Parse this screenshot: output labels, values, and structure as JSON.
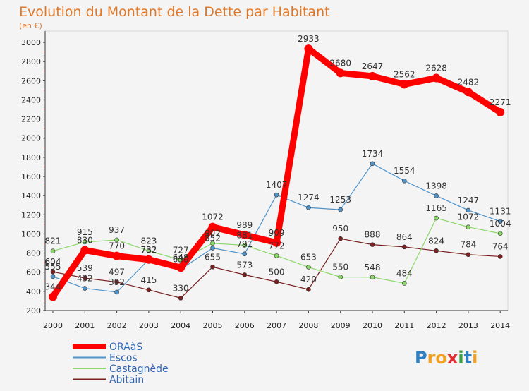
{
  "chart_data": {
    "type": "line",
    "title": "Evolution du Montant de la Dette par Habitant",
    "subtitle": "(en €)",
    "x": [
      "2000",
      "2001",
      "2002",
      "2003",
      "2004",
      "2005",
      "2006",
      "2007",
      "2008",
      "2009",
      "2010",
      "2011",
      "2012",
      "2013",
      "2014"
    ],
    "y_ticks": [
      200,
      400,
      600,
      800,
      1000,
      1200,
      1400,
      1600,
      1800,
      2000,
      2200,
      2400,
      2600,
      2800,
      3000
    ],
    "ylim": [
      200,
      3000
    ],
    "grid": "none",
    "legend_position": "bottom-left",
    "series": [
      {
        "name": "ORAàS",
        "color": "#ff0000",
        "values": [
          344,
          830,
          770,
          732,
          648,
          1072,
          989,
          909,
          2933,
          2680,
          2647,
          2562,
          2628,
          2482,
          2271
        ],
        "labels": [
          "344",
          "830",
          "770",
          "732",
          "648",
          "1072",
          "989",
          "909",
          "2933",
          "2680",
          "2647",
          "2562",
          "2628",
          "2482",
          "2271"
        ]
      },
      {
        "name": "Escos",
        "color": "#4f93c9",
        "values": [
          555,
          432,
          392,
          732,
          630,
          852,
          791,
          1407,
          1274,
          1253,
          1734,
          1554,
          1398,
          1247,
          1131
        ],
        "labels": [
          "555",
          "432",
          "392",
          "732",
          "630",
          "852",
          "791",
          "1407",
          "1274",
          "1253",
          "1734",
          "1554",
          "1398",
          "1247",
          "1131"
        ]
      },
      {
        "name": "Castagnède",
        "color": "#8cd86a",
        "values": [
          821,
          915,
          937,
          823,
          727,
          902,
          881,
          772,
          653,
          550,
          548,
          484,
          1165,
          1072,
          1004
        ],
        "labels": [
          "821",
          "915",
          "937",
          "823",
          "727",
          "902",
          "881",
          "772",
          "653",
          "550",
          "548",
          "484",
          "1165",
          "1072",
          "1004"
        ]
      },
      {
        "name": "Abitain",
        "color": "#7a2020",
        "values": [
          604,
          539,
          497,
          415,
          330,
          655,
          573,
          500,
          420,
          950,
          888,
          864,
          824,
          784,
          764
        ],
        "labels": [
          "604",
          "539",
          "497",
          "415",
          "330",
          "655",
          "573",
          "500",
          "420",
          "950",
          "888",
          "864",
          "824",
          "784",
          "764"
        ]
      }
    ]
  },
  "logo": {
    "text": "Proxiti"
  }
}
